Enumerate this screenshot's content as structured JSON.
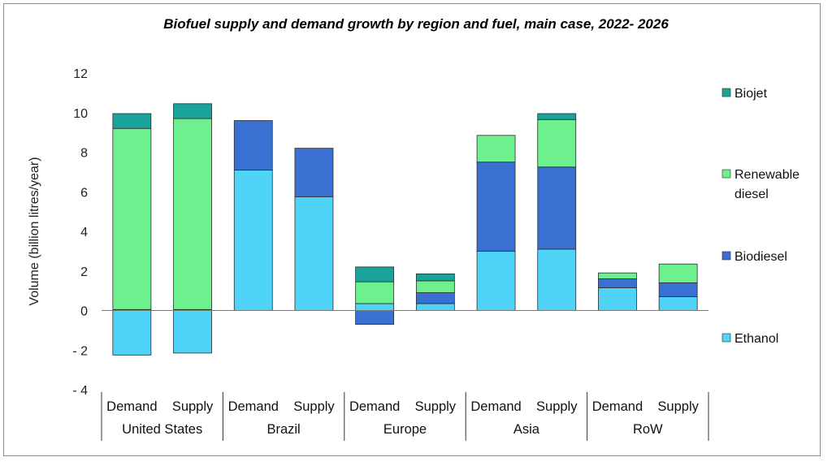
{
  "chart_data": {
    "type": "bar",
    "stacked": true,
    "title": "Biofuel supply and demand growth by region and fuel, main case, 2022- 2026",
    "xlabel": "",
    "ylabel": "Volume (billion litres/year)",
    "ylim": [
      -4,
      12
    ],
    "yticks": [
      12,
      10,
      8,
      6,
      4,
      2,
      0,
      -2,
      -4
    ],
    "ytick_labels": [
      "12",
      "10",
      "8",
      "6",
      "4",
      "2",
      "0",
      "- 2",
      "- 4"
    ],
    "grid": false,
    "legend_position": "right",
    "groups": [
      {
        "name": "United States",
        "categories": [
          "Demand",
          "Supply"
        ]
      },
      {
        "name": "Brazil",
        "categories": [
          "Demand",
          "Supply"
        ]
      },
      {
        "name": "Europe",
        "categories": [
          "Demand",
          "Supply"
        ]
      },
      {
        "name": "Asia",
        "categories": [
          "Demand",
          "Supply"
        ]
      },
      {
        "name": "RoW",
        "categories": [
          "Demand",
          "Supply"
        ]
      }
    ],
    "categories": [
      "United States Demand",
      "United States Supply",
      "Brazil Demand",
      "Brazil Supply",
      "Europe Demand",
      "Europe Supply",
      "Asia Demand",
      "Asia Supply",
      "RoW Demand",
      "RoW Supply"
    ],
    "series": [
      {
        "name": "Ethanol",
        "color": "#4fd3f6",
        "values": [
          -2.25,
          -2.15,
          7.1,
          5.75,
          0.35,
          0.35,
          3.0,
          3.1,
          1.15,
          0.7
        ]
      },
      {
        "name": "Biodiesel",
        "color": "#3a70d2",
        "values": [
          0.05,
          0.05,
          2.5,
          2.45,
          -0.7,
          0.55,
          4.5,
          4.15,
          0.45,
          0.7
        ]
      },
      {
        "name": "Renewable diesel",
        "color": "#6ff08e",
        "values": [
          9.15,
          9.65,
          0,
          0,
          1.1,
          0.6,
          1.35,
          2.4,
          0.3,
          0.95
        ]
      },
      {
        "name": "Biojet",
        "color": "#1aa39a",
        "values": [
          0.75,
          0.75,
          0,
          0,
          0.75,
          0.35,
          0,
          0.3,
          0,
          0
        ]
      }
    ],
    "legend": [
      {
        "name": "Biojet",
        "lines": [
          "Biojet"
        ],
        "color": "#1aa39a"
      },
      {
        "name": "Renewable diesel",
        "lines": [
          "Renewable",
          "diesel"
        ],
        "color": "#6ff08e"
      },
      {
        "name": "Biodiesel",
        "lines": [
          "Biodiesel"
        ],
        "color": "#3a70d2"
      },
      {
        "name": "Ethanol",
        "lines": [
          "Ethanol"
        ],
        "color": "#4fd3f6"
      }
    ]
  }
}
